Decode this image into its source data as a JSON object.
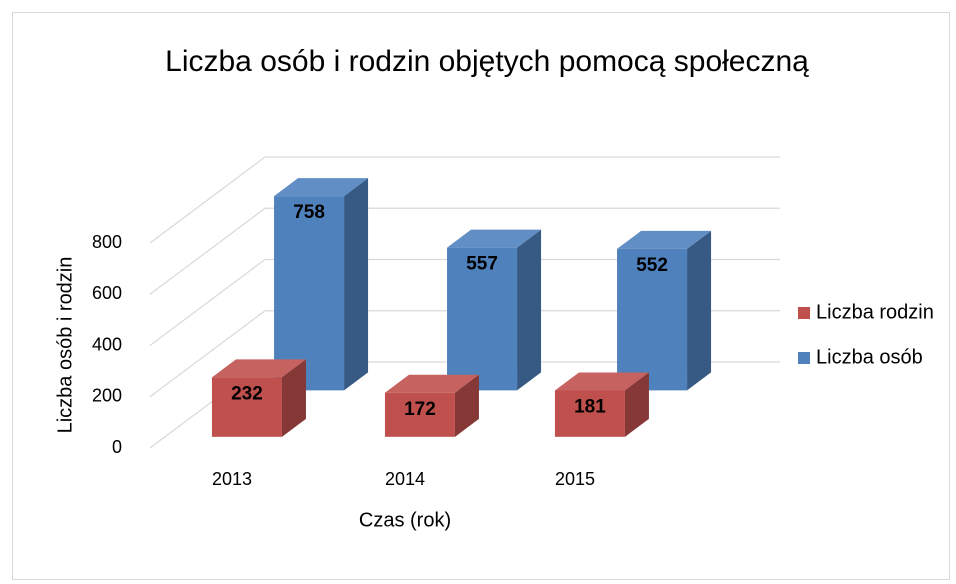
{
  "chart_data": {
    "type": "bar3d",
    "title": "Liczba osób i rodzin objętych pomocą społeczną",
    "x_label": "Czas (rok)",
    "y_label": "Liczba osób i rodzin",
    "categories": [
      "2013",
      "2014",
      "2015"
    ],
    "series": [
      {
        "name": "Liczba rodzin",
        "color": "#c0504d",
        "values": [
          232,
          172,
          181
        ]
      },
      {
        "name": "Liczba osób",
        "color": "#4f81bd",
        "values": [
          758,
          557,
          552
        ]
      }
    ],
    "ylim": [
      0,
      800
    ],
    "yticks": [
      0,
      200,
      400,
      600,
      800
    ],
    "grid": true,
    "legend": "right"
  }
}
